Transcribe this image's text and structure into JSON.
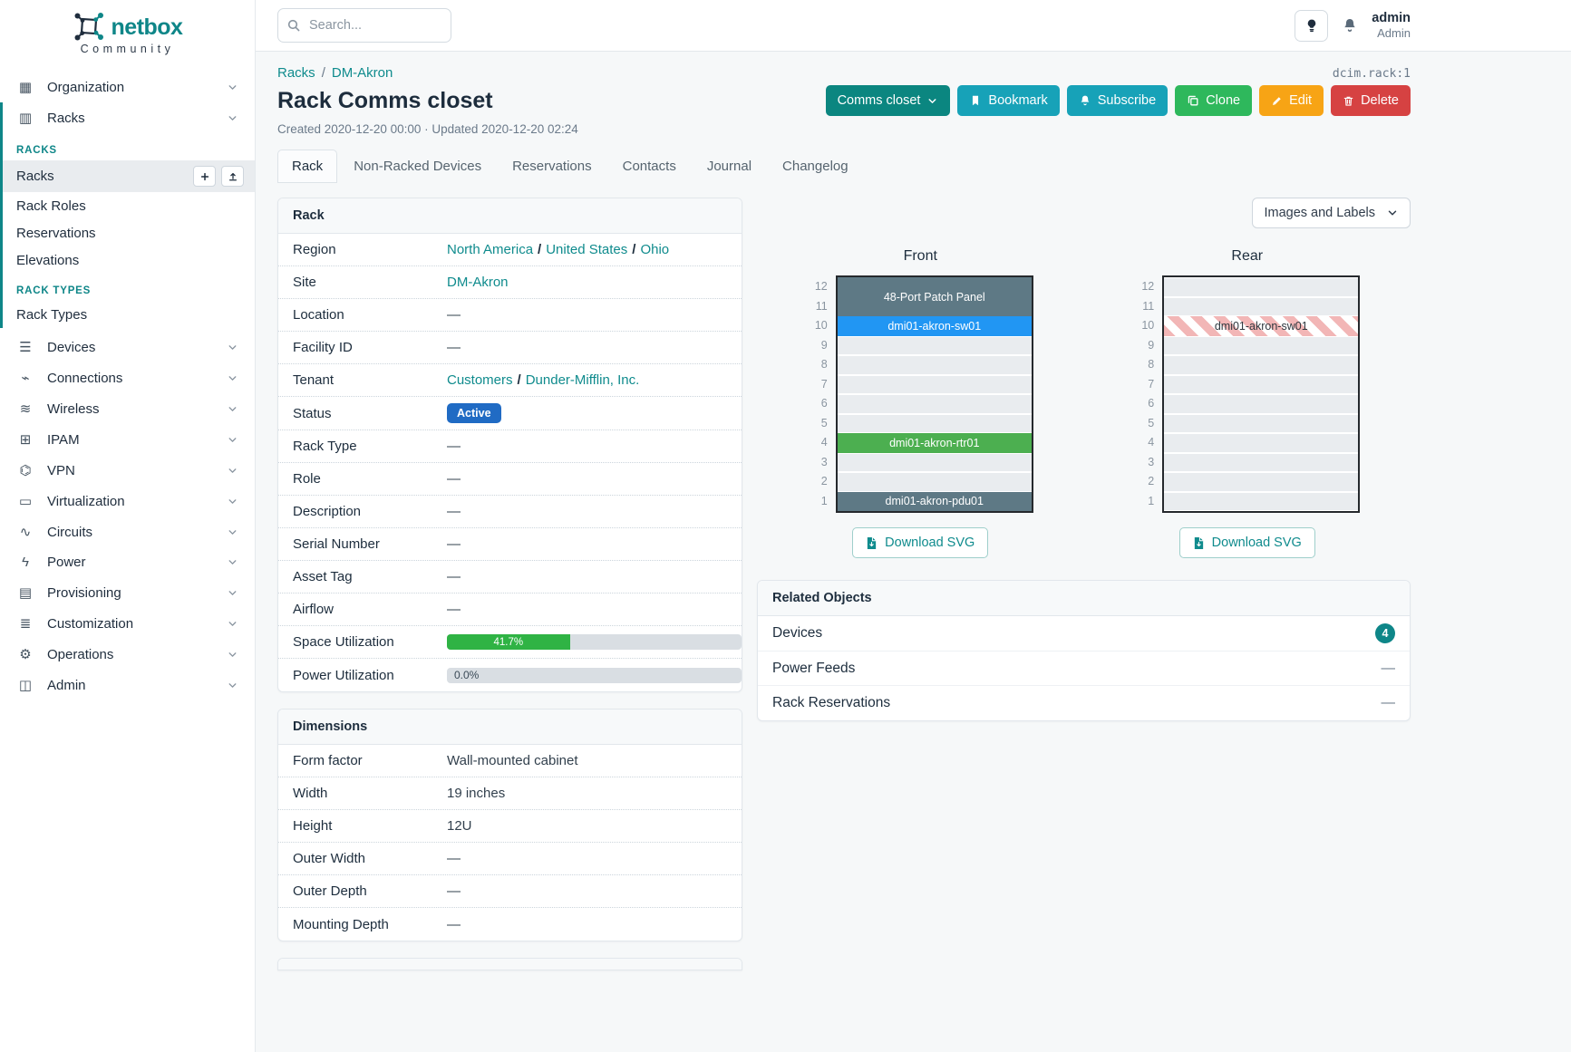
{
  "brand": {
    "name": "netbox",
    "tagline": "Community"
  },
  "topbar": {
    "search_placeholder": "Search...",
    "user_name": "admin",
    "user_role": "Admin"
  },
  "sidebar": {
    "items_top": [
      {
        "label": "Organization",
        "icon": "building-icon"
      }
    ],
    "racks_group": {
      "label": "Racks",
      "icon": "rack-icon",
      "sections": [
        {
          "header": "RACKS",
          "items": [
            {
              "label": "Racks",
              "active": true,
              "buttons": [
                "plus-icon",
                "upload-icon"
              ]
            },
            {
              "label": "Rack Roles"
            },
            {
              "label": "Reservations"
            },
            {
              "label": "Elevations"
            }
          ]
        },
        {
          "header": "RACK TYPES",
          "items": [
            {
              "label": "Rack Types"
            }
          ]
        }
      ]
    },
    "items_bottom": [
      {
        "label": "Devices",
        "icon": "devices-icon"
      },
      {
        "label": "Connections",
        "icon": "plug-icon"
      },
      {
        "label": "Wireless",
        "icon": "wifi-icon"
      },
      {
        "label": "IPAM",
        "icon": "ipam-icon"
      },
      {
        "label": "VPN",
        "icon": "vpn-icon"
      },
      {
        "label": "Virtualization",
        "icon": "monitor-icon"
      },
      {
        "label": "Circuits",
        "icon": "circuits-icon"
      },
      {
        "label": "Power",
        "icon": "power-icon"
      },
      {
        "label": "Provisioning",
        "icon": "provisioning-icon"
      },
      {
        "label": "Customization",
        "icon": "customization-icon"
      },
      {
        "label": "Operations",
        "icon": "operations-icon"
      },
      {
        "label": "Admin",
        "icon": "admin-icon"
      }
    ]
  },
  "page": {
    "breadcrumb": [
      {
        "label": "Racks"
      },
      {
        "label": "DM-Akron"
      }
    ],
    "object_id": "dcim.rack:1",
    "title": "Rack Comms closet",
    "meta": "Created 2020-12-20 00:00 · Updated 2020-12-20 02:24",
    "actions": [
      {
        "label": "Comms closet",
        "icon": "chevron-down-icon",
        "icon_after": true,
        "color": "#0b8680"
      },
      {
        "label": "Bookmark",
        "icon": "bookmark-icon",
        "color": "#17a2b8"
      },
      {
        "label": "Subscribe",
        "icon": "bell-icon",
        "color": "#17a2b8"
      },
      {
        "label": "Clone",
        "icon": "copy-icon",
        "color": "#2eb85c"
      },
      {
        "label": "Edit",
        "icon": "pencil-icon",
        "color": "#f7a415"
      },
      {
        "label": "Delete",
        "icon": "trash-icon",
        "color": "#d64242"
      }
    ],
    "tabs": [
      {
        "label": "Rack",
        "active": true
      },
      {
        "label": "Non-Racked Devices"
      },
      {
        "label": "Reservations"
      },
      {
        "label": "Contacts"
      },
      {
        "label": "Journal"
      },
      {
        "label": "Changelog"
      }
    ]
  },
  "rack_panel": {
    "title": "Rack",
    "rows": [
      {
        "label": "Region",
        "type": "links",
        "parts": [
          "North America",
          "United States",
          "Ohio"
        ]
      },
      {
        "label": "Site",
        "type": "link",
        "value": "DM-Akron"
      },
      {
        "label": "Location",
        "type": "text",
        "value": "—"
      },
      {
        "label": "Facility ID",
        "type": "text",
        "value": "—"
      },
      {
        "label": "Tenant",
        "type": "links",
        "parts": [
          "Customers",
          "Dunder-Mifflin, Inc."
        ]
      },
      {
        "label": "Status",
        "type": "badge",
        "value": "Active"
      },
      {
        "label": "Rack Type",
        "type": "text",
        "value": "—"
      },
      {
        "label": "Role",
        "type": "text",
        "value": "—"
      },
      {
        "label": "Description",
        "type": "text",
        "value": "—"
      },
      {
        "label": "Serial Number",
        "type": "text",
        "value": "—"
      },
      {
        "label": "Asset Tag",
        "type": "text",
        "value": "—"
      },
      {
        "label": "Airflow",
        "type": "text",
        "value": "—"
      },
      {
        "label": "Space Utilization",
        "type": "progress",
        "value": "41.7%",
        "percent": 41.7
      },
      {
        "label": "Power Utilization",
        "type": "progress",
        "value": "0.0%",
        "percent": 0
      }
    ]
  },
  "dimensions_panel": {
    "title": "Dimensions",
    "rows": [
      {
        "label": "Form factor",
        "type": "text",
        "value": "Wall-mounted cabinet"
      },
      {
        "label": "Width",
        "type": "text",
        "value": "19 inches"
      },
      {
        "label": "Height",
        "type": "text",
        "value": "12U"
      },
      {
        "label": "Outer Width",
        "type": "text",
        "value": "—"
      },
      {
        "label": "Outer Depth",
        "type": "text",
        "value": "—"
      },
      {
        "label": "Mounting Depth",
        "type": "text",
        "value": "—"
      }
    ]
  },
  "elevation": {
    "menu_label": "Images and Labels",
    "download_label": "Download SVG",
    "unit_count": 12,
    "colors": {
      "slate": "#5e7985",
      "blue": "#2196f3",
      "green": "#4caf50",
      "empty": "#e9ecef"
    },
    "views": [
      {
        "title": "Front",
        "blocks": [
          {
            "span": 2,
            "style": "slate",
            "label": "48-Port Patch Panel",
            "units": "11-12"
          },
          {
            "span": 1,
            "style": "blue",
            "label": "dmi01-akron-sw01",
            "units": "10"
          },
          {
            "span": 5,
            "style": "empty"
          },
          {
            "span": 1,
            "style": "green",
            "label": "dmi01-akron-rtr01",
            "units": "4"
          },
          {
            "span": 2,
            "style": "empty"
          },
          {
            "span": 1,
            "style": "slate",
            "label": "dmi01-akron-pdu01",
            "units": "1"
          }
        ]
      },
      {
        "title": "Rear",
        "blocks": [
          {
            "span": 2,
            "style": "empty"
          },
          {
            "span": 1,
            "style": "striped",
            "label": "dmi01-akron-sw01",
            "units": "10"
          },
          {
            "span": 9,
            "style": "empty"
          }
        ]
      }
    ]
  },
  "related_panel": {
    "title": "Related Objects",
    "rows": [
      {
        "label": "Devices",
        "count": "4"
      },
      {
        "label": "Power Feeds",
        "value": "—"
      },
      {
        "label": "Rack Reservations",
        "value": "—"
      }
    ]
  },
  "colors": {
    "accent_teal": "#0e8688",
    "link_teal": "#0f8b8d",
    "status_active": "#206bc4",
    "progress_green": "#2fb344"
  }
}
